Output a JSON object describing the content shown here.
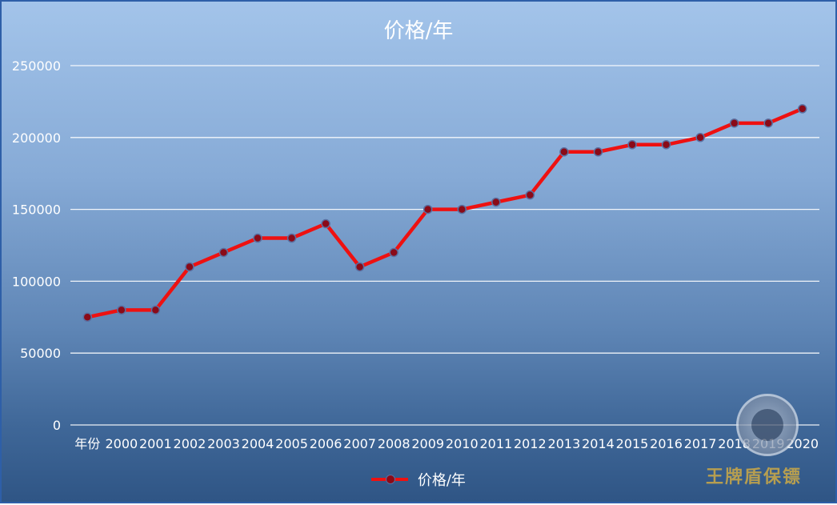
{
  "chart_data": {
    "type": "line",
    "title": "价格/年",
    "categories": [
      "年份",
      "2000",
      "2001",
      "2002",
      "2003",
      "2004",
      "2005",
      "2006",
      "2007",
      "2008",
      "2009",
      "2010",
      "2011",
      "2012",
      "2013",
      "2014",
      "2015",
      "2016",
      "2017",
      "2018",
      "2019",
      "2020"
    ],
    "series": [
      {
        "name": "价格/年",
        "values": [
          75000,
          80000,
          80000,
          110000,
          120000,
          130000,
          130000,
          140000,
          110000,
          120000,
          150000,
          150000,
          155000,
          160000,
          190000,
          190000,
          195000,
          195000,
          200000,
          210000,
          210000,
          220000
        ]
      }
    ],
    "yticks": [
      "0",
      "50000",
      "100000",
      "150000",
      "200000",
      "250000"
    ],
    "ylim": [
      0,
      250000
    ],
    "grid": true,
    "legend_position": "bottom",
    "colors": {
      "line": "#ee1111",
      "marker": "#8a0a18",
      "marker_edge": "#5a6fa0",
      "grid": "#ffffff"
    }
  },
  "watermark": {
    "text": "王牌盾保镖",
    "seal_icon": "tiger-seal-icon"
  }
}
